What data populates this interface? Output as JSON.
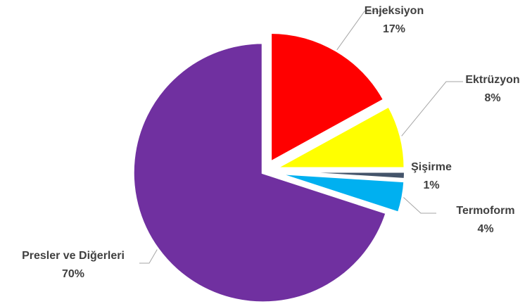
{
  "chart_data": {
    "type": "pie",
    "title": "",
    "slices": [
      {
        "label": "Enjeksiyon",
        "value": 17,
        "pct_label": "17%",
        "color": "#FF0000"
      },
      {
        "label": "Ektrüzyon",
        "value": 8,
        "pct_label": "8%",
        "color": "#FFFF00"
      },
      {
        "label": "Şişirme",
        "value": 1,
        "pct_label": "1%",
        "color": "#44546A"
      },
      {
        "label": "Termoform",
        "value": 4,
        "pct_label": "4%",
        "color": "#00B0F0"
      },
      {
        "label": "Presler ve Diğerleri",
        "value": 70,
        "pct_label": "70%",
        "color": "#7030A0"
      }
    ],
    "start_angle": "12 o'clock",
    "direction": "clockwise",
    "exploded": true,
    "legend": "none"
  }
}
